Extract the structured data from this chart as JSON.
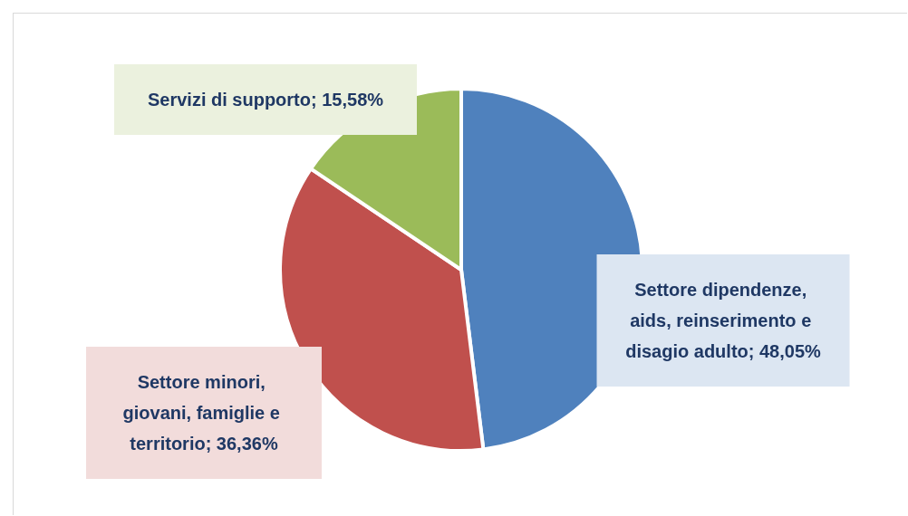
{
  "chart_data": {
    "type": "pie",
    "categories": [
      "Settore dipendenze, aids, reinserimento e disagio adulto",
      "Settore minori, giovani, famiglie e territorio",
      "Servizi di supporto"
    ],
    "values": [
      48.05,
      36.36,
      15.58
    ],
    "value_labels": [
      "48,05%",
      "36,36%",
      "15,58%"
    ],
    "colors": [
      "#4f81bd",
      "#c0504d",
      "#9bbb59"
    ],
    "legend": false
  }
}
